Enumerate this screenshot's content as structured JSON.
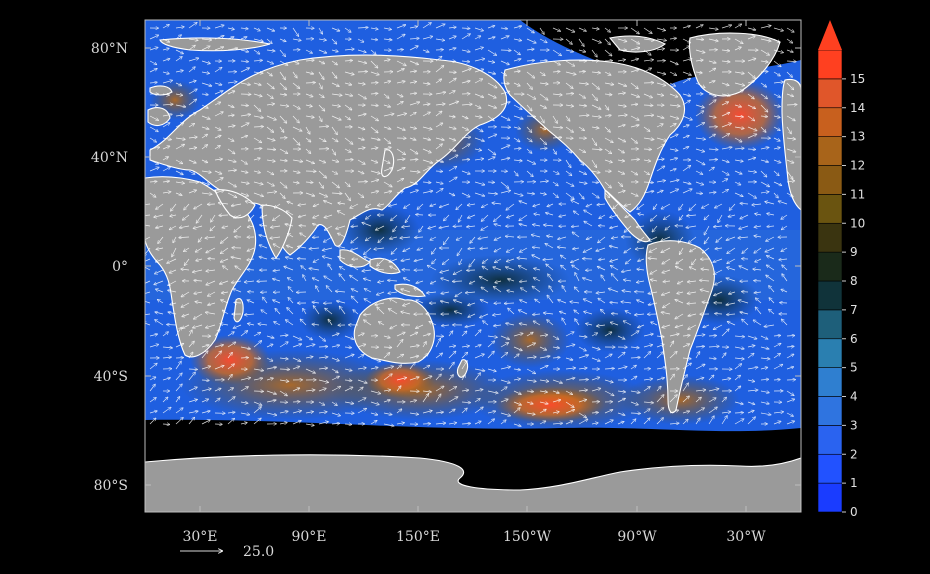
{
  "map": {
    "lat_labels": [
      "80°N",
      "40°N",
      "0°",
      "40°S",
      "80°S"
    ],
    "lon_labels": [
      "30°E",
      "90°E",
      "150°E",
      "150°W",
      "90°W",
      "30°W"
    ],
    "reference_vector_value": "25.0",
    "colors": {
      "background": "#000000",
      "land": "#9a9a9a",
      "coast": "#ffffff",
      "vectors": "#ffffff",
      "sea_ice": "#000000"
    }
  },
  "colorbar": {
    "ticks": [
      "0",
      "1",
      "2",
      "3",
      "4",
      "5",
      "6",
      "7",
      "8",
      "9",
      "10",
      "11",
      "12",
      "13",
      "14",
      "15"
    ],
    "colors": [
      "#1a3cff",
      "#2252ff",
      "#2a63f0",
      "#2f74e0",
      "#2f7fd0",
      "#2a7fb0",
      "#1e5f7a",
      "#10333a",
      "#1a2a1a",
      "#3a3410",
      "#6a5410",
      "#8a5a14",
      "#a8641a",
      "#c8601e",
      "#e0562a",
      "#ff4020"
    ],
    "arrow_color": "#ff4020"
  }
}
